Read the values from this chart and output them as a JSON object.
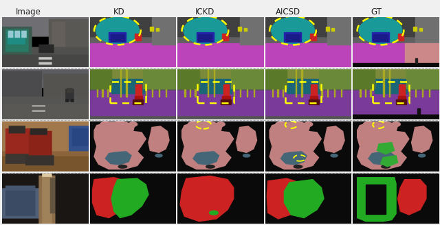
{
  "col_headers": [
    "Image",
    "KD",
    "ICKD",
    "AICSD",
    "GT"
  ],
  "col_header_fontsize": 8.5,
  "header_color": "#222222",
  "background_color": "#f0f0f0",
  "dashed_box_color": "#ffff00",
  "fig_width": 6.4,
  "fig_height": 3.28,
  "dpi": 100,
  "row0_seg": {
    "bg": "#606060",
    "road_color": "#cc44cc",
    "sky_color": "#404040",
    "teal_color": "#1a9999",
    "blue_color": "#2222aa",
    "red_color": "#cc2222",
    "pink_road_color": "#cc8888",
    "black_color": "#0a0a0a"
  },
  "row1_seg": {
    "bg": "#555555",
    "olive_color": "#7a8a3a",
    "purple_color": "#7a3a99",
    "teal_color": "#1a6677",
    "red_color": "#cc2222",
    "dark_red": "#661111",
    "pole_color": "#aaaa22",
    "black_color": "#0a0a0a"
  },
  "row2_seg": {
    "bg": "#0a0a0a",
    "pink_color": "#c08080",
    "teal_color": "#446677",
    "green_color": "#33aa33"
  },
  "row3_seg": {
    "bg": "#0a0a0a",
    "red_color": "#cc2222",
    "green_color": "#22aa22"
  }
}
